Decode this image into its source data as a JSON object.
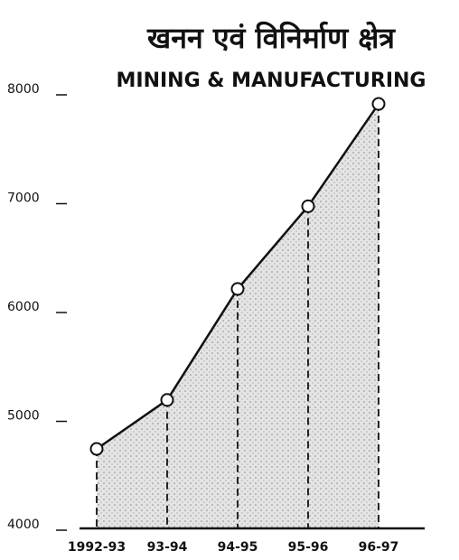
{
  "chart_data": {
    "type": "line",
    "title": "खनन एवं विनिर्माण क्षेत्र",
    "subtitle": "MINING & MANUFACTURING",
    "categories": [
      "1992-93",
      "93-94",
      "94-95",
      "95-96",
      "96-97"
    ],
    "values": [
      4730,
      5180,
      6200,
      6960,
      7900
    ],
    "color": "#111111",
    "fill": "#c8c8c8",
    "ylim": [
      4000,
      8000
    ],
    "yticks": [
      4000,
      5000,
      6000,
      7000,
      8000
    ]
  }
}
